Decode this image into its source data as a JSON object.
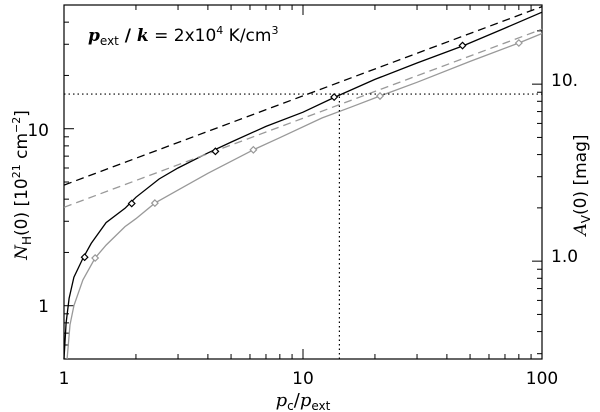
{
  "chart_data": {
    "type": "line",
    "annotation": {
      "p_sym": "p",
      "ext_sub": "ext",
      "slash": " / ",
      "k_sym": "k",
      "eq": " = 2x10",
      "exp": "4",
      "unit": " K/cm",
      "unit_exp": "3"
    },
    "xaxis": {
      "scale": "log",
      "range": [
        1,
        100
      ],
      "tick_labels": [
        "1",
        "10",
        "100"
      ],
      "label": {
        "p": "p",
        "c": "c",
        "slash": "/",
        "p2": "p",
        "ext": "ext"
      }
    },
    "yaxis_left": {
      "scale": "log",
      "range": [
        0.5,
        50
      ],
      "tick_labels": [
        "1",
        "10"
      ],
      "label": {
        "n": "N",
        "h": "H",
        "rest": "(0) [10",
        "exp1": "21",
        "unit": " cm",
        "exp2": "−2",
        "close": "]"
      }
    },
    "yaxis_right": {
      "scale": "log",
      "range": [
        0.28,
        28
      ],
      "tick_labels": [
        "1.0",
        "10."
      ],
      "label": {
        "a": "A",
        "v": "V",
        "rest": "(0) [mag]"
      }
    },
    "series": [
      {
        "color": "#000000",
        "style": "solid",
        "x": [
          1.0,
          1.02,
          1.05,
          1.1,
          1.2,
          1.3,
          1.5,
          1.8,
          2.0,
          2.5,
          3.0,
          4.0,
          5.0,
          7.0,
          10.0,
          13.5,
          20.0,
          30.0,
          47.0,
          70.0,
          100.0
        ],
        "y": [
          0.5,
          0.8,
          1.1,
          1.45,
          1.85,
          2.25,
          2.95,
          3.55,
          4.1,
          5.2,
          6.0,
          7.3,
          8.4,
          10.3,
          12.4,
          15.0,
          19.0,
          23.5,
          29.5,
          37.0,
          45.5
        ]
      },
      {
        "color": "#999999",
        "style": "solid",
        "x": [
          1.03,
          1.06,
          1.1,
          1.2,
          1.35,
          1.5,
          1.8,
          2.0,
          2.4,
          3.0,
          4.0,
          6.2,
          8.0,
          12.0,
          16.0,
          21.0,
          30.0,
          50.0,
          80.0,
          100.0
        ],
        "y": [
          0.5,
          0.78,
          1.0,
          1.4,
          1.86,
          2.2,
          2.8,
          3.1,
          3.8,
          4.5,
          5.6,
          7.6,
          8.9,
          11.5,
          13.3,
          15.3,
          18.3,
          24.0,
          30.5,
          34.5
        ]
      },
      {
        "color": "#000000",
        "style": "dashed",
        "x": [
          1,
          100
        ],
        "y": [
          4.8,
          49.0
        ]
      },
      {
        "color": "#999999",
        "style": "dashed",
        "x": [
          1,
          100
        ],
        "y": [
          3.6,
          36.5
        ]
      }
    ],
    "markers": [
      {
        "color": "#000000",
        "x": [
          1.22,
          1.92,
          4.3,
          13.5,
          46.5
        ],
        "y": [
          1.88,
          3.78,
          7.45,
          15.1,
          29.5
        ]
      },
      {
        "color": "#999999",
        "x": [
          1.35,
          2.4,
          6.2,
          21.0,
          80.0
        ],
        "y": [
          1.86,
          3.8,
          7.6,
          15.3,
          30.5
        ]
      }
    ],
    "reference_lines": [
      {
        "style": "dotted",
        "orientation": "horizontal",
        "y": 15.7
      },
      {
        "style": "dotted",
        "orientation": "vertical",
        "x": 14.2,
        "y_from": 0.5,
        "y_to": 15.7
      }
    ]
  }
}
